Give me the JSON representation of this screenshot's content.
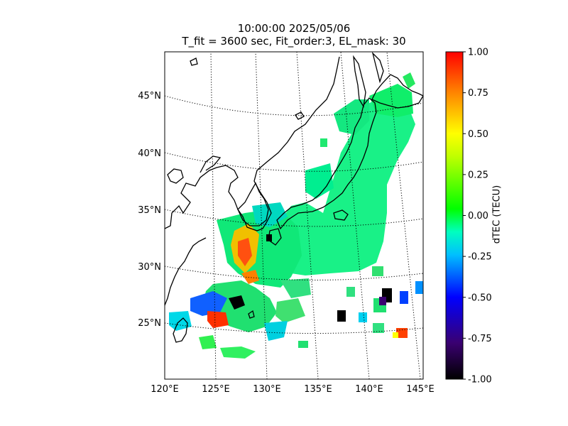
{
  "title": {
    "line1": "10:00:00 2025/05/06",
    "line2": "T_fit = 3600 sec, Fit_order:3, EL_mask: 30"
  },
  "map": {
    "projection": "conic",
    "lon_range": [
      120,
      145
    ],
    "lat_range": [
      20,
      49
    ],
    "lat_labels": [
      "45°N",
      "40°N",
      "35°N",
      "30°N",
      "25°N"
    ],
    "lat_values": [
      45,
      40,
      35,
      30,
      25
    ],
    "lon_labels": [
      "120°E",
      "125°E",
      "130°E",
      "135°E",
      "140°E",
      "145°E"
    ],
    "lon_values": [
      120,
      125,
      130,
      135,
      140,
      145
    ],
    "coastline_color": "#000000",
    "graticule_style": "dotted"
  },
  "colorbar": {
    "label": "dTEC (TECU)",
    "min": -1.0,
    "max": 1.0,
    "ticks": [
      "1.00",
      "0.75",
      "0.50",
      "0.25",
      "0.00",
      "-0.25",
      "-0.50",
      "-0.75",
      "-1.00"
    ],
    "colormap": [
      "#000000",
      "#3a0070",
      "#0000ff",
      "#00bfff",
      "#00ffbf",
      "#00ff00",
      "#bfff00",
      "#ffff00",
      "#ff8000",
      "#ff0000"
    ]
  }
}
